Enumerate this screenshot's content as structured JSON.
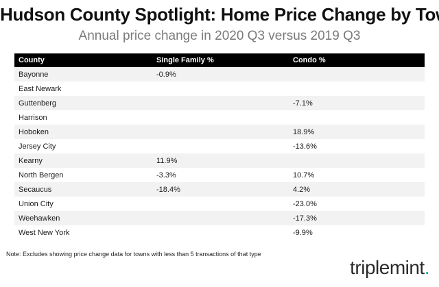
{
  "header": {
    "title": "Hudson County Spotlight: Home Price Change by Town",
    "subtitle": "Annual price change in 2020 Q3 versus 2019 Q3"
  },
  "chart_data": {
    "type": "table",
    "columns": [
      "County",
      "Single Family %",
      "Condo %"
    ],
    "rows": [
      [
        "Bayonne",
        "-0.9%",
        ""
      ],
      [
        "East Newark",
        "",
        ""
      ],
      [
        "Guttenberg",
        "",
        "-7.1%"
      ],
      [
        "Harrison",
        "",
        ""
      ],
      [
        "Hoboken",
        "",
        "18.9%"
      ],
      [
        "Jersey City",
        "",
        "-13.6%"
      ],
      [
        "Kearny",
        "11.9%",
        ""
      ],
      [
        "North Bergen",
        "-3.3%",
        "10.7%"
      ],
      [
        "Secaucus",
        "-18.4%",
        "4.2%"
      ],
      [
        "Union City",
        "",
        "-23.0%"
      ],
      [
        "Weehawken",
        "",
        "-17.3%"
      ],
      [
        "West New York",
        "",
        "-9.9%"
      ]
    ]
  },
  "footer": {
    "note": "Note: Excludes showing price change data for towns with less than 5 transactions of that type",
    "brand": "triplemint",
    "brand_dot": "."
  },
  "colors": {
    "header_bg": "#000000",
    "stripe": "#f2f2f2",
    "brand_accent": "#19b6a8"
  }
}
